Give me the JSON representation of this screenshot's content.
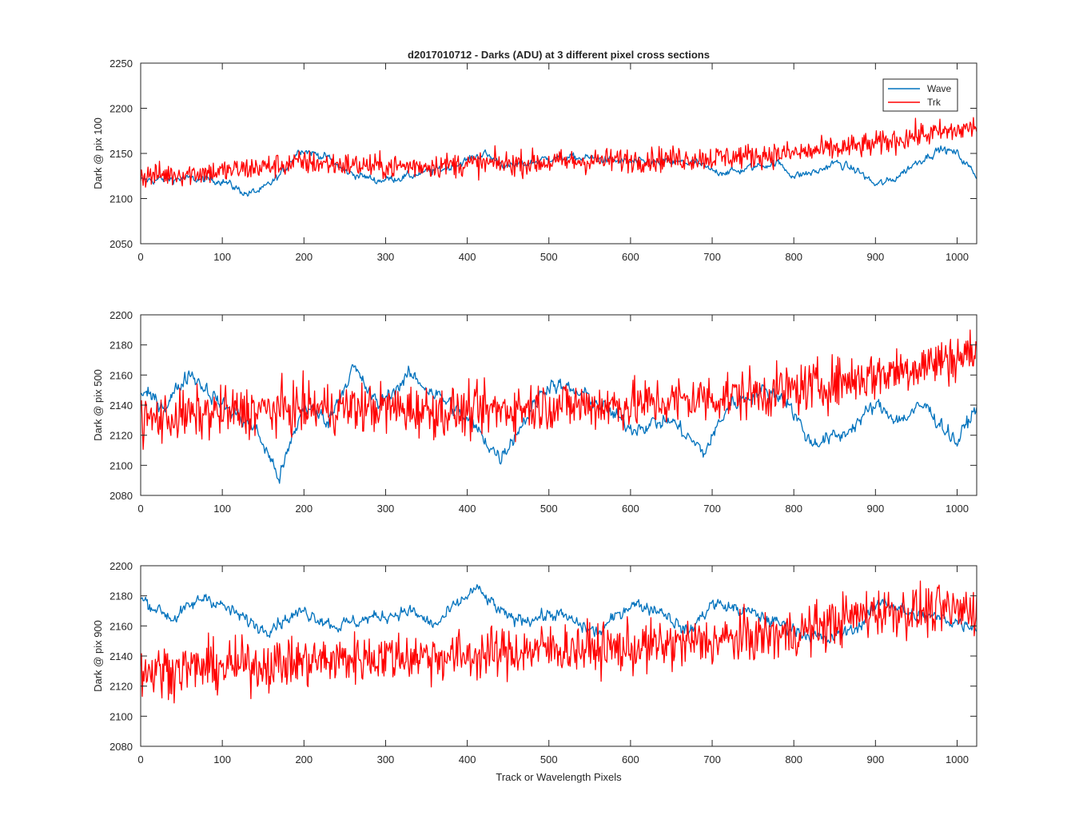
{
  "figure": {
    "title": "d2017010712 - Darks (ADU) at 3 different pixel cross sections",
    "xlabel": "Track or Wavelength Pixels"
  },
  "legend": {
    "placement": "top-right",
    "entries": [
      {
        "name": "Wave",
        "color": "#0072BD"
      },
      {
        "name": "Trk",
        "color": "#FF0000"
      }
    ]
  },
  "chart_data": [
    {
      "type": "line",
      "ylabel": "Dark @ pix 100",
      "xlim": [
        0,
        1024
      ],
      "ylim": [
        2050,
        2250
      ],
      "xticks": [
        0,
        100,
        200,
        300,
        400,
        500,
        600,
        700,
        800,
        900,
        1000
      ],
      "yticks": [
        2050,
        2100,
        2150,
        2200,
        2250
      ],
      "grid": false,
      "series": [
        {
          "name": "Wave",
          "color": "#0072BD",
          "x": [
            0,
            50,
            100,
            130,
            150,
            170,
            195,
            230,
            250,
            290,
            330,
            380,
            420,
            450,
            480,
            500,
            550,
            600,
            650,
            680,
            700,
            730,
            750,
            780,
            800,
            830,
            850,
            880,
            900,
            920,
            950,
            980,
            1000,
            1024
          ],
          "y": [
            2120,
            2122,
            2120,
            2105,
            2110,
            2125,
            2155,
            2145,
            2130,
            2120,
            2125,
            2135,
            2150,
            2135,
            2140,
            2145,
            2145,
            2140,
            2140,
            2140,
            2130,
            2130,
            2135,
            2140,
            2125,
            2130,
            2140,
            2130,
            2115,
            2120,
            2140,
            2155,
            2150,
            2125
          ]
        },
        {
          "name": "Trk",
          "color": "#FF0000",
          "x": [
            0,
            100,
            200,
            300,
            400,
            500,
            600,
            700,
            800,
            850,
            900,
            950,
            1000,
            1024
          ],
          "y": [
            2125,
            2130,
            2140,
            2135,
            2138,
            2140,
            2143,
            2145,
            2150,
            2155,
            2160,
            2170,
            2175,
            2180
          ]
        }
      ]
    },
    {
      "type": "line",
      "ylabel": "Dark @ pix 500",
      "xlim": [
        0,
        1024
      ],
      "ylim": [
        2080,
        2200
      ],
      "xticks": [
        0,
        100,
        200,
        300,
        400,
        500,
        600,
        700,
        800,
        900,
        1000
      ],
      "yticks": [
        2080,
        2100,
        2120,
        2140,
        2160,
        2180,
        2200
      ],
      "grid": false,
      "series": [
        {
          "name": "Wave",
          "color": "#0072BD",
          "x": [
            0,
            30,
            60,
            100,
            140,
            170,
            200,
            230,
            260,
            290,
            330,
            380,
            410,
            440,
            470,
            500,
            550,
            600,
            650,
            690,
            720,
            760,
            790,
            820,
            860,
            900,
            930,
            960,
            1000,
            1024
          ],
          "y": [
            2148,
            2140,
            2162,
            2140,
            2125,
            2092,
            2140,
            2130,
            2165,
            2140,
            2160,
            2140,
            2125,
            2105,
            2130,
            2155,
            2145,
            2125,
            2130,
            2108,
            2140,
            2150,
            2145,
            2115,
            2120,
            2140,
            2130,
            2140,
            2115,
            2140
          ]
        },
        {
          "name": "Trk",
          "color": "#FF0000",
          "x": [
            0,
            100,
            200,
            300,
            400,
            500,
            600,
            700,
            800,
            900,
            1000,
            1024
          ],
          "y": [
            2130,
            2135,
            2138,
            2138,
            2135,
            2140,
            2140,
            2145,
            2150,
            2160,
            2172,
            2175
          ]
        }
      ]
    },
    {
      "type": "line",
      "ylabel": "Dark @ pix 900",
      "xlim": [
        0,
        1024
      ],
      "ylim": [
        2080,
        2200
      ],
      "xticks": [
        0,
        100,
        200,
        300,
        400,
        500,
        600,
        700,
        800,
        900,
        1000
      ],
      "yticks": [
        2080,
        2100,
        2120,
        2140,
        2160,
        2180,
        2200
      ],
      "grid": false,
      "series": [
        {
          "name": "Wave",
          "color": "#0072BD",
          "x": [
            0,
            40,
            80,
            110,
            150,
            200,
            240,
            280,
            330,
            360,
            410,
            450,
            480,
            510,
            560,
            600,
            640,
            670,
            700,
            740,
            790,
            840,
            880,
            910,
            940,
            980,
            1024
          ],
          "y": [
            2178,
            2165,
            2180,
            2170,
            2158,
            2170,
            2160,
            2165,
            2170,
            2160,
            2185,
            2165,
            2165,
            2168,
            2155,
            2175,
            2170,
            2155,
            2175,
            2170,
            2160,
            2150,
            2160,
            2178,
            2168,
            2165,
            2160
          ]
        },
        {
          "name": "Trk",
          "color": "#FF0000",
          "x": [
            0,
            100,
            200,
            300,
            400,
            500,
            600,
            700,
            800,
            900,
            1000,
            1024
          ],
          "y": [
            2130,
            2133,
            2136,
            2140,
            2140,
            2145,
            2145,
            2150,
            2155,
            2170,
            2170,
            2172
          ]
        }
      ]
    }
  ]
}
